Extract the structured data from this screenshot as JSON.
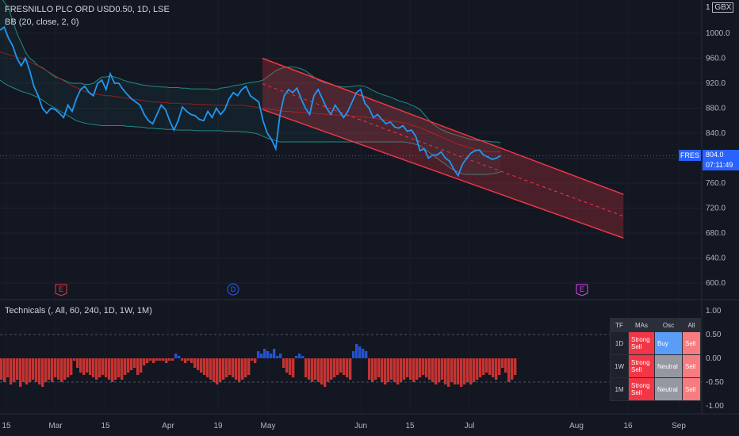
{
  "header": {
    "symbol_line": "FRESNILLO PLC ORD USD0.50, 1D, LSE",
    "indicator_line": "BB (20, close, 2, 0)",
    "currency": "GBX",
    "currency_prefix": "1"
  },
  "price_tag": {
    "symbol": "FRES",
    "price": "804.0",
    "countdown": "07:11:49"
  },
  "lower_pane": {
    "title": "Technicals (, All, 60, 240, 1D, 1W, 1M)"
  },
  "colors": {
    "price_line": "#2196f3",
    "bb_band": "#26a69a",
    "bb_basis": "#b71c1c",
    "channel": "#f23645",
    "neg_bar": "#e53935",
    "pos_bar": "#2962ff"
  },
  "technicals_table": {
    "headers": [
      "TF",
      "MAs",
      "Osc",
      "All"
    ],
    "rows": [
      {
        "tf": "1D",
        "mas": "Strong Sell",
        "osc": "Buy",
        "all": "Sell"
      },
      {
        "tf": "1W",
        "mas": "Strong Sell",
        "osc": "Neutral",
        "all": "Sell"
      },
      {
        "tf": "1M",
        "mas": "Strong Sell",
        "osc": "Neutral",
        "all": "Sell"
      }
    ]
  },
  "event_markers": [
    {
      "label": "E",
      "date": "Feb 24",
      "kind": "earnings"
    },
    {
      "label": "D",
      "date": "Apr 29",
      "kind": "dividend"
    },
    {
      "label": "E",
      "date": "Jul 28",
      "kind": "earnings-upcoming"
    }
  ],
  "chart_data": [
    {
      "type": "line",
      "title": "FRESNILLO PLC ORD USD0.50, 1D, LSE",
      "ylim": [
        570,
        1040
      ],
      "y_ticks": [
        600,
        640,
        680,
        720,
        760,
        800,
        840,
        880,
        920,
        960,
        1000
      ],
      "y_tick_labels": [
        "600.0",
        "640.0",
        "680.0",
        "720.0",
        "760.0",
        "800.0",
        "840.0",
        "880.0",
        "920.0",
        "960.0",
        "1000.0"
      ],
      "x_tick_labels": [
        "15",
        "Mar",
        "15",
        "Apr",
        "19",
        "May",
        "Jun",
        "15",
        "Jul",
        "Aug",
        "16",
        "Sep"
      ],
      "series": [
        {
          "name": "FRES",
          "values": [
            1005,
            1010,
            992,
            980,
            960,
            948,
            960,
            940,
            915,
            900,
            880,
            872,
            880,
            878,
            872,
            865,
            885,
            875,
            895,
            910,
            915,
            905,
            900,
            920,
            925,
            910,
            935,
            920,
            920,
            910,
            902,
            895,
            890,
            885,
            870,
            860,
            855,
            870,
            885,
            878,
            860,
            845,
            860,
            882,
            875,
            870,
            868,
            862,
            860,
            875,
            865,
            880,
            870,
            878,
            895,
            905,
            900,
            910,
            915,
            900,
            895,
            890,
            860,
            840,
            830,
            815,
            870,
            900,
            910,
            905,
            912,
            895,
            880,
            870,
            900,
            910,
            895,
            880,
            870,
            885,
            875,
            865,
            875,
            890,
            905,
            910,
            888,
            880,
            865,
            870,
            862,
            855,
            858,
            850,
            848,
            852,
            843,
            845,
            835,
            812,
            815,
            800,
            805,
            805,
            810,
            800,
            795,
            782,
            772,
            790,
            800,
            808,
            812,
            813,
            805,
            802,
            798,
            800,
            804
          ]
        },
        {
          "name": "BB upper",
          "values": [
            1060,
            1050,
            1040,
            1020,
            1000,
            985,
            970,
            960,
            955,
            948,
            945,
            940,
            935,
            930,
            928,
            925,
            922,
            920,
            920,
            920,
            918,
            918,
            920,
            925,
            930,
            930,
            932,
            930,
            928,
            925,
            923,
            921,
            920,
            918,
            917,
            916,
            915,
            915,
            914,
            914,
            913,
            913,
            913,
            912,
            912,
            911,
            911,
            911,
            911,
            911,
            910,
            910,
            912,
            913,
            914,
            916,
            917,
            918,
            920,
            921,
            922,
            923,
            925,
            930,
            935,
            940,
            943,
            945,
            946,
            946,
            945,
            943,
            940,
            935,
            930,
            925,
            922,
            920,
            918,
            916,
            915,
            914,
            914,
            915,
            916,
            916,
            915,
            912,
            908,
            905,
            902,
            900,
            898,
            895,
            892,
            890,
            888,
            885,
            882,
            878,
            870,
            862,
            855,
            850,
            846,
            843,
            840,
            838,
            836,
            834,
            832,
            830,
            829,
            828,
            828,
            827,
            826,
            826,
            825
          ]
        },
        {
          "name": "BB basis",
          "values": [
            970,
            968,
            966,
            964,
            962,
            960,
            957,
            954,
            951,
            948,
            944,
            940,
            936,
            932,
            928,
            924,
            920,
            916,
            913,
            910,
            907,
            905,
            903,
            902,
            901,
            900,
            900,
            899,
            898,
            897,
            896,
            895,
            894,
            893,
            892,
            891,
            890,
            890,
            889,
            889,
            888,
            888,
            888,
            887,
            887,
            887,
            886,
            886,
            886,
            886,
            885,
            885,
            885,
            885,
            885,
            885,
            885,
            885,
            884,
            883,
            882,
            881,
            880,
            879,
            878,
            877,
            876,
            875,
            875,
            874,
            874,
            873,
            873,
            872,
            872,
            871,
            871,
            870,
            870,
            869,
            869,
            868,
            868,
            867,
            867,
            866,
            866,
            865,
            864,
            863,
            862,
            861,
            860,
            859,
            858,
            857,
            855,
            853,
            851,
            849,
            846,
            843,
            840,
            837,
            834,
            831,
            828,
            825,
            822,
            820,
            818,
            816,
            814,
            812,
            811,
            810,
            810,
            810,
            810
          ]
        },
        {
          "name": "BB lower",
          "values": [
            925,
            920,
            916,
            913,
            910,
            907,
            905,
            903,
            900,
            897,
            893,
            888,
            884,
            880,
            876,
            872,
            868,
            864,
            860,
            858,
            856,
            855,
            854,
            853,
            852,
            852,
            852,
            852,
            852,
            852,
            851,
            851,
            850,
            850,
            849,
            848,
            848,
            847,
            847,
            846,
            846,
            846,
            845,
            845,
            845,
            845,
            844,
            844,
            844,
            844,
            844,
            844,
            844,
            843,
            843,
            843,
            843,
            842,
            842,
            841,
            840,
            838,
            835,
            832,
            830,
            828,
            826,
            826,
            826,
            826,
            826,
            826,
            826,
            826,
            826,
            826,
            826,
            826,
            826,
            826,
            826,
            826,
            826,
            826,
            826,
            826,
            826,
            826,
            826,
            826,
            826,
            826,
            826,
            826,
            826,
            826,
            825,
            824,
            822,
            820,
            815,
            810,
            805,
            800,
            795,
            790,
            785,
            781,
            778,
            775,
            774,
            774,
            774,
            774,
            774,
            774,
            775,
            776,
            778
          ]
        }
      ],
      "channel": {
        "upper": [
          [
            0,
            960
          ],
          [
            157,
            742
          ]
        ],
        "lower": [
          [
            0,
            878
          ],
          [
            157,
            672
          ]
        ],
        "mid": [
          [
            0,
            919
          ],
          [
            157,
            707
          ]
        ]
      }
    },
    {
      "type": "bar",
      "title": "Technicals (, All, 60, 240, 1D, 1W, 1M)",
      "ylim": [
        -1.1,
        1.1
      ],
      "y_ticks": [
        -1,
        -0.5,
        0,
        0.5,
        1
      ],
      "y_tick_labels": [
        "-1.00",
        "-0.50",
        "0.00",
        "0.50",
        "1.00"
      ],
      "values": [
        -0.45,
        -0.5,
        -0.4,
        -0.55,
        -0.5,
        -0.45,
        -0.6,
        -0.5,
        -0.55,
        -0.5,
        -0.45,
        -0.5,
        -0.55,
        -0.6,
        -0.5,
        -0.45,
        -0.5,
        -0.4,
        -0.45,
        -0.5,
        -0.45,
        -0.4,
        -0.35,
        -0.05,
        -0.2,
        -0.3,
        -0.35,
        -0.3,
        -0.35,
        -0.4,
        -0.45,
        -0.4,
        -0.35,
        -0.4,
        -0.45,
        -0.5,
        -0.45,
        -0.4,
        -0.45,
        -0.35,
        -0.3,
        -0.25,
        -0.2,
        -0.35,
        -0.3,
        -0.15,
        -0.1,
        -0.05,
        -0.1,
        -0.05,
        -0.05,
        -0.05,
        -0.1,
        -0.05,
        -0.05,
        0.1,
        0.05,
        -0.05,
        -0.1,
        -0.05,
        -0.1,
        -0.2,
        -0.25,
        -0.3,
        -0.35,
        -0.4,
        -0.45,
        -0.5,
        -0.55,
        -0.5,
        -0.45,
        -0.4,
        -0.35,
        -0.4,
        -0.45,
        -0.5,
        -0.45,
        -0.4,
        -0.35,
        -0.05,
        -0.1,
        0.15,
        0.1,
        0.2,
        0.15,
        0.1,
        0.2,
        0.05,
        0.1,
        -0.2,
        -0.3,
        -0.35,
        -0.4,
        0.05,
        0.1,
        0.05,
        -0.4,
        -0.45,
        -0.5,
        -0.45,
        -0.5,
        -0.55,
        -0.6,
        -0.5,
        -0.45,
        -0.4,
        -0.35,
        -0.3,
        -0.35,
        -0.4,
        -0.45,
        0.15,
        0.3,
        0.25,
        0.2,
        0.15,
        -0.45,
        -0.5,
        -0.45,
        -0.4,
        -0.5,
        -0.55,
        -0.5,
        -0.45,
        -0.5,
        -0.55,
        -0.5,
        -0.45,
        -0.4,
        -0.45,
        -0.5,
        -0.45,
        -0.4,
        -0.35,
        -0.4,
        -0.45,
        -0.5,
        -0.55,
        -0.5,
        -0.45,
        -0.55,
        -0.6,
        -0.5,
        -0.55,
        -0.55,
        -0.6,
        -0.55,
        -0.5,
        -0.55,
        -0.5,
        -0.45,
        -0.4,
        -0.35,
        -0.3,
        -0.35,
        -0.4,
        -0.45,
        -0.35,
        -0.2,
        -0.3,
        -0.5,
        -0.45,
        -0.35
      ]
    }
  ]
}
